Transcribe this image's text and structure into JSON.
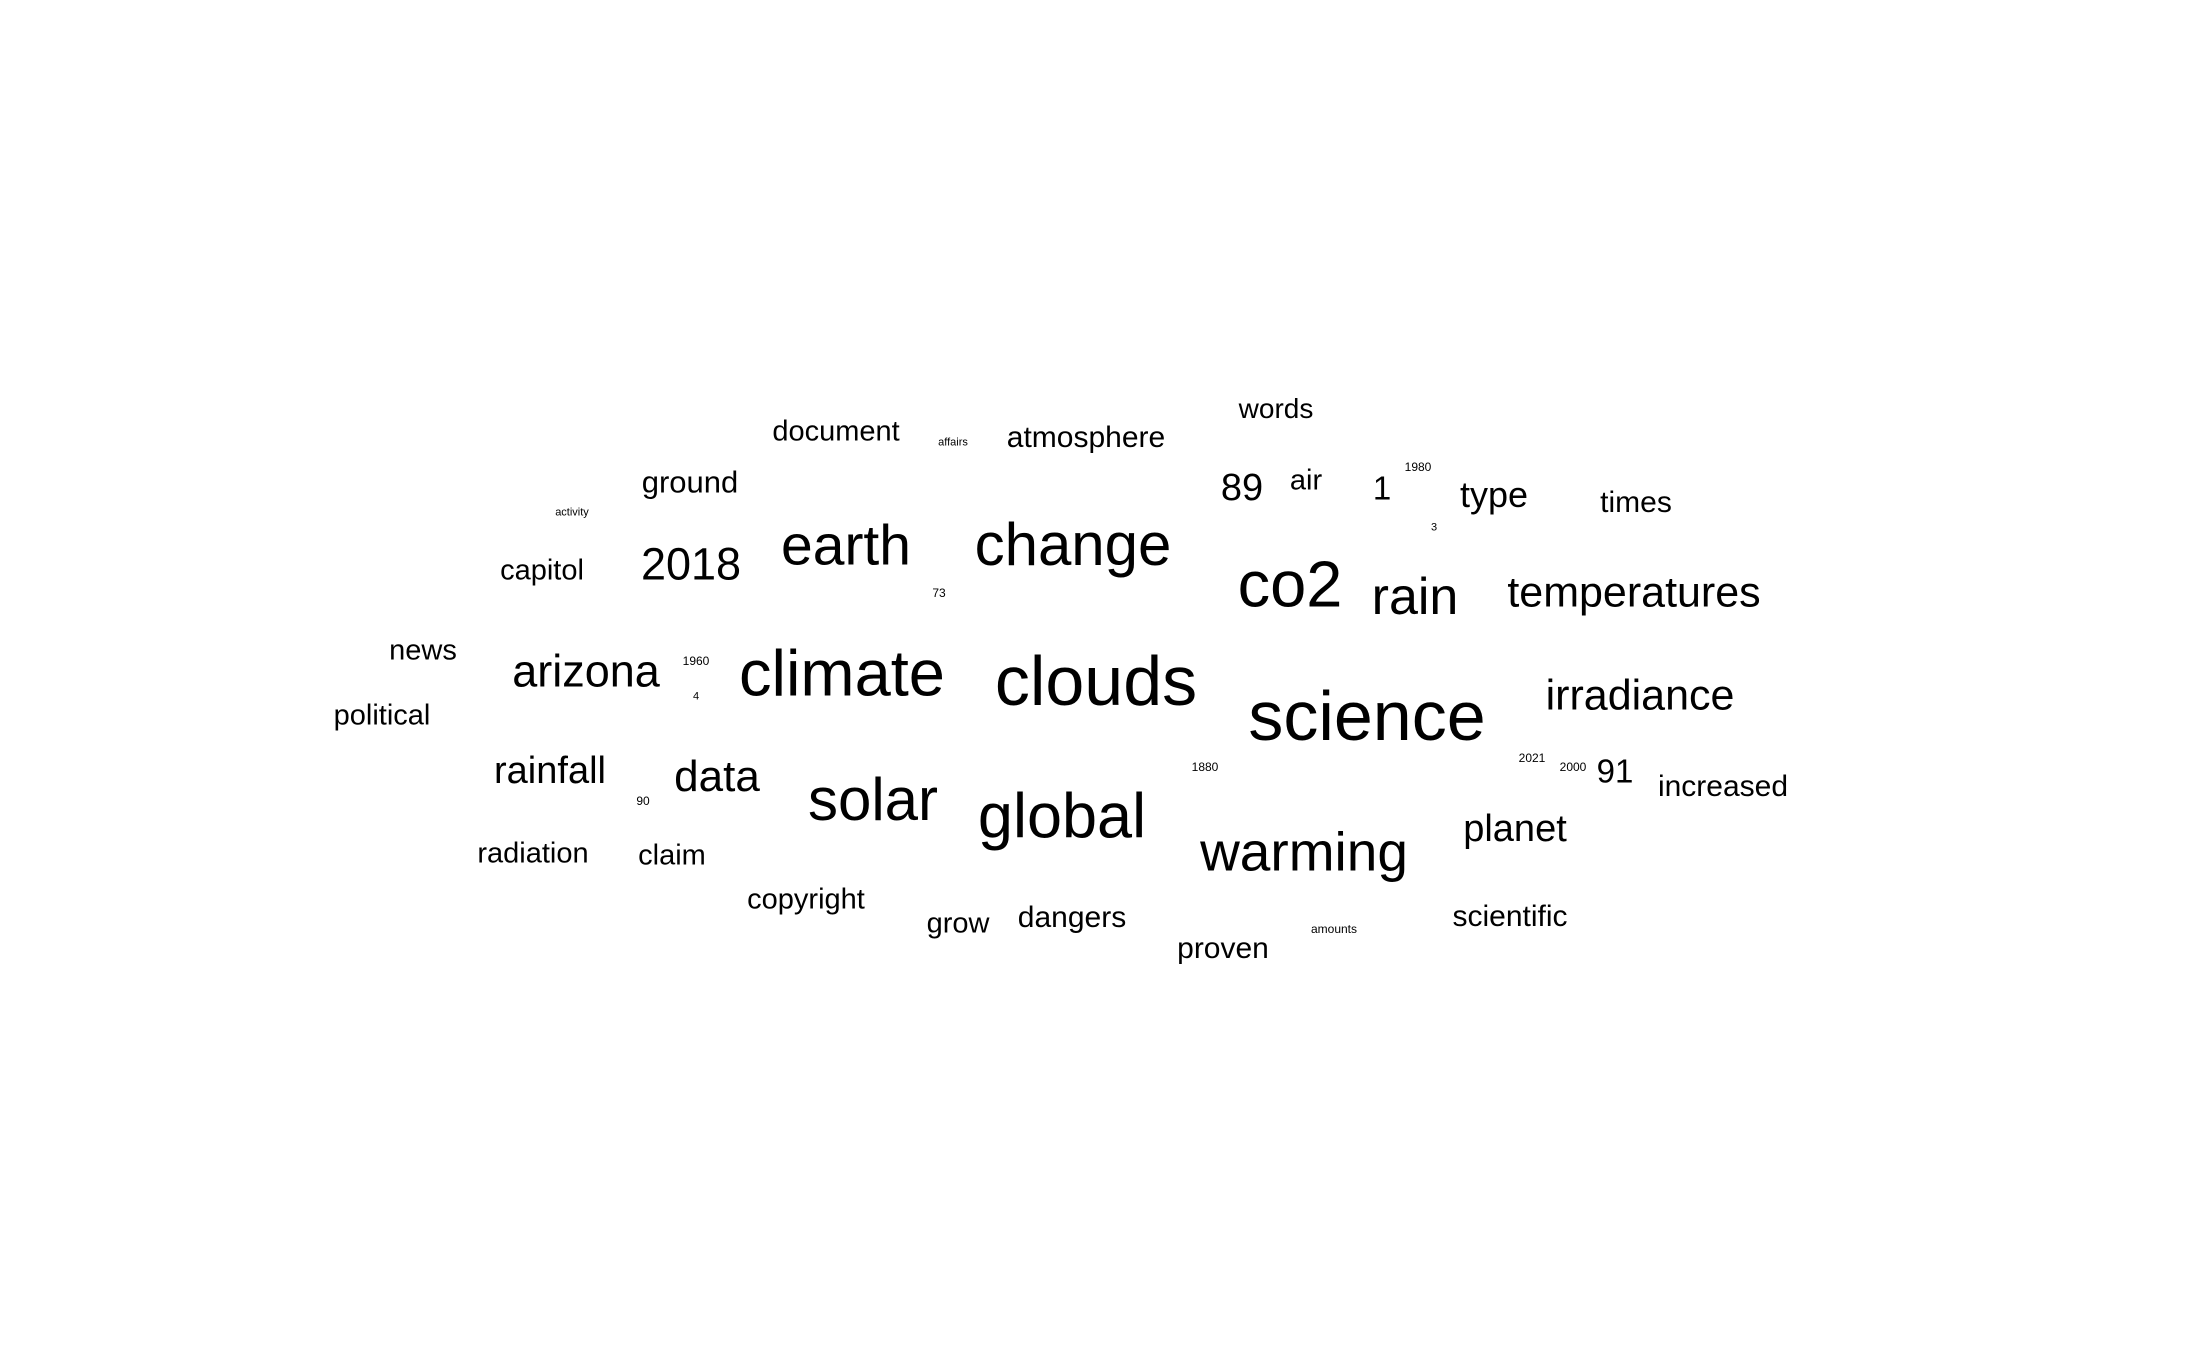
{
  "words": [
    {
      "text": "words"
    },
    {
      "text": "document"
    },
    {
      "text": "affairs"
    },
    {
      "text": "atmosphere"
    },
    {
      "text": "1980"
    },
    {
      "text": "ground"
    },
    {
      "text": "89"
    },
    {
      "text": "air"
    },
    {
      "text": "1"
    },
    {
      "text": "type"
    },
    {
      "text": "times"
    },
    {
      "text": "activity"
    },
    {
      "text": "3"
    },
    {
      "text": "earth"
    },
    {
      "text": "change"
    },
    {
      "text": "2018"
    },
    {
      "text": "capitol"
    },
    {
      "text": "co2"
    },
    {
      "text": "rain"
    },
    {
      "text": "temperatures"
    },
    {
      "text": "73"
    },
    {
      "text": "news"
    },
    {
      "text": "arizona"
    },
    {
      "text": "1960"
    },
    {
      "text": "climate"
    },
    {
      "text": "clouds"
    },
    {
      "text": "4"
    },
    {
      "text": "irradiance"
    },
    {
      "text": "political"
    },
    {
      "text": "science"
    },
    {
      "text": "2021"
    },
    {
      "text": "2000"
    },
    {
      "text": "91"
    },
    {
      "text": "rainfall"
    },
    {
      "text": "1880"
    },
    {
      "text": "data"
    },
    {
      "text": "increased"
    },
    {
      "text": "90"
    },
    {
      "text": "solar"
    },
    {
      "text": "global"
    },
    {
      "text": "planet"
    },
    {
      "text": "warming"
    },
    {
      "text": "radiation"
    },
    {
      "text": "claim"
    },
    {
      "text": "copyright"
    },
    {
      "text": "grow"
    },
    {
      "text": "dangers"
    },
    {
      "text": "scientific"
    },
    {
      "text": "amounts"
    },
    {
      "text": "proven"
    }
  ]
}
